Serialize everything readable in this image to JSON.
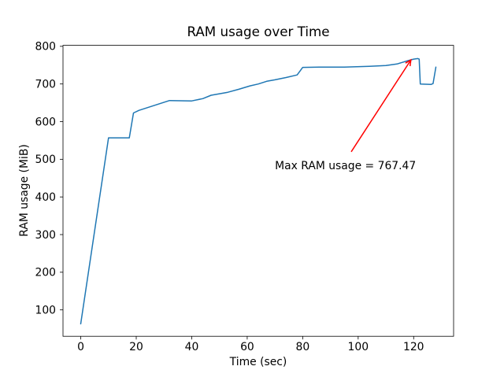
{
  "chart_data": {
    "type": "line",
    "title": "RAM usage over Time",
    "xlabel": "Time (sec)",
    "ylabel": "RAM usage (MiB)",
    "grid": false,
    "legend": null,
    "x_ticks": [
      0,
      20,
      40,
      60,
      80,
      100,
      120
    ],
    "y_ticks": [
      100,
      200,
      300,
      400,
      500,
      600,
      700,
      800
    ],
    "xlim": [
      -6.4,
      134.4
    ],
    "ylim": [
      29.9,
      802.6
    ],
    "series": [
      {
        "name": "RAM usage",
        "color": "#1f77b4",
        "x": [
          0,
          10,
          17.5,
          19,
          21,
          32,
          40,
          44,
          47,
          53,
          57,
          61,
          64,
          67,
          70,
          74,
          78,
          80,
          86,
          95,
          104,
          110,
          114,
          118,
          120,
          121.5,
          122,
          122.4,
          126.3,
          127,
          128
        ],
        "y": [
          63,
          557,
          557,
          623,
          630,
          656,
          655,
          661,
          670,
          678,
          686,
          695,
          700,
          707,
          711,
          717,
          724,
          744,
          745,
          745,
          747,
          749,
          753,
          762,
          766,
          767.47,
          766,
          700,
          699,
          701,
          745
        ]
      }
    ],
    "annotation": {
      "text": "Max RAM usage = 767.47",
      "color": "#ff0000",
      "text_pos_data": [
        70,
        474
      ],
      "arrow_tail_data": [
        97.5,
        520
      ],
      "arrow_tip_data": [
        119,
        764
      ]
    }
  }
}
